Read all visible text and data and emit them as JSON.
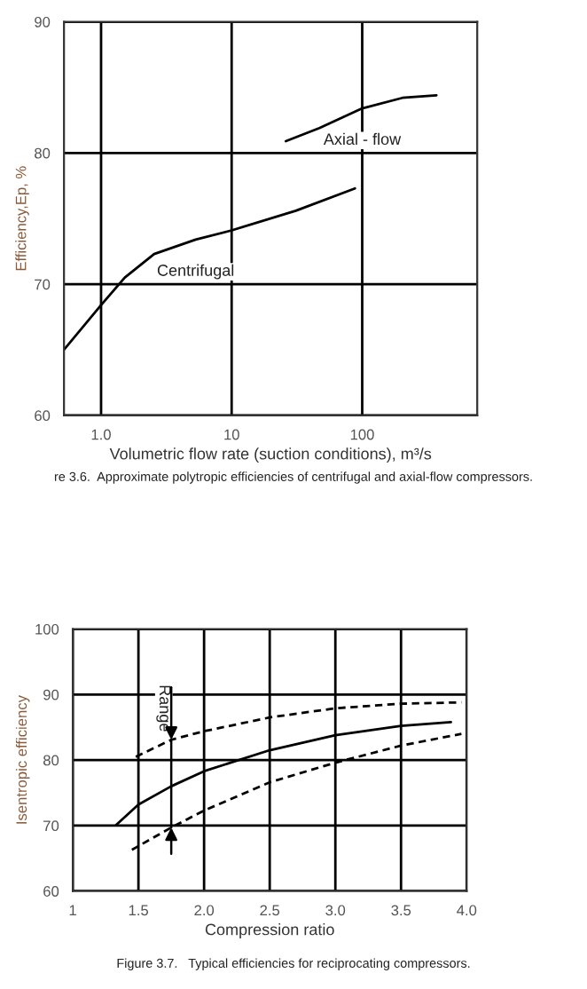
{
  "chart_data": [
    {
      "type": "line",
      "xlabel": "Volumetric flow rate (suction conditions), m³/s",
      "ylabel": "Efficiency,Ep, %",
      "log": "x",
      "grid": true,
      "xlim": [
        0.52,
        760
      ],
      "xticks": [
        {
          "value": 1,
          "label": "1.0"
        },
        10,
        100
      ],
      "ylim": [
        60,
        90
      ],
      "yticks": [
        60,
        70,
        80,
        90
      ],
      "series": [
        {
          "name": "Centrifugal",
          "color": "#000000",
          "line_style": "solid",
          "x": [
            0.52,
            1,
            1.52,
            2.55,
            5.3,
            10,
            31,
            88
          ],
          "values": [
            65.0,
            68.4,
            70.5,
            72.3,
            73.4,
            74.1,
            75.6,
            77.3
          ]
        },
        {
          "name": "Axial - flow",
          "color": "#000000",
          "line_style": "solid",
          "x": [
            26,
            47,
            100,
            203,
            370
          ],
          "values": [
            80.9,
            81.9,
            83.4,
            84.2,
            84.4
          ]
        }
      ],
      "annotations": [
        "re 3.6.  Approximate polytropic efficiencies of centrifugal and axial-flow compressors."
      ]
    },
    {
      "type": "line",
      "xlabel": "Compression ratio",
      "ylabel": "Isentropic efficiency",
      "grid": true,
      "xlim": [
        1,
        4
      ],
      "xticks": [
        1,
        1.5,
        {
          "value": 2,
          "label": "2.0"
        },
        2.5,
        {
          "value": 3,
          "label": "3.0"
        },
        3.5,
        {
          "value": 4,
          "label": "4.0"
        }
      ],
      "ylim": [
        60,
        100
      ],
      "yticks": [
        60,
        70,
        80,
        90,
        100
      ],
      "series": [
        {
          "color": "#000000",
          "line_style": "dashed",
          "x": [
            1.48,
            1.75,
            2.0,
            2.5,
            3.0,
            3.5,
            3.96
          ],
          "values": [
            80.5,
            83.1,
            84.4,
            86.5,
            87.9,
            88.6,
            88.8
          ]
        },
        {
          "color": "#000000",
          "line_style": "solid",
          "x": [
            1.33,
            1.5,
            1.75,
            2.0,
            2.5,
            3.0,
            3.5,
            3.88
          ],
          "values": [
            70.1,
            73.2,
            76.0,
            78.3,
            81.5,
            83.8,
            85.2,
            85.8
          ]
        },
        {
          "color": "#000000",
          "line_style": "dashed",
          "x": [
            1.45,
            1.75,
            2.0,
            2.5,
            3.0,
            3.5,
            3.96
          ],
          "values": [
            66.3,
            69.7,
            72.3,
            76.6,
            79.6,
            82.2,
            84.0
          ]
        }
      ],
      "annotations": [
        "Range",
        "Figure 3.7.   Typical efficiencies for reciprocating compressors."
      ]
    }
  ]
}
